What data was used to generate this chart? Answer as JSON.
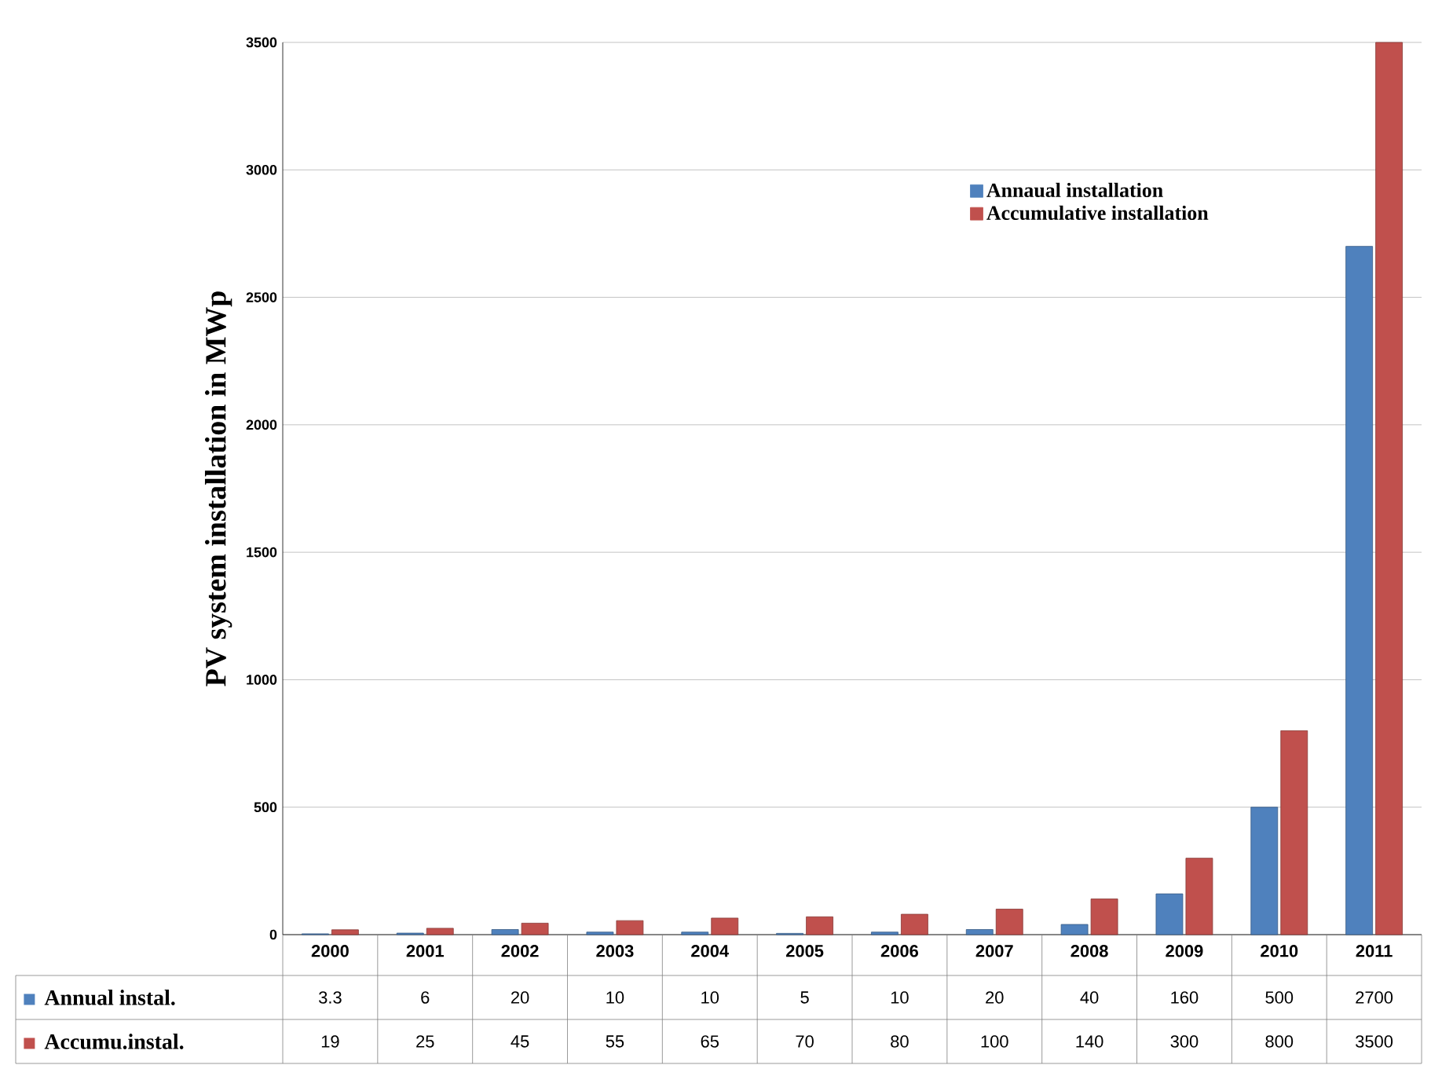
{
  "chart_data": {
    "type": "bar",
    "ylabel": "PV system installation in MWp",
    "categories": [
      "2000",
      "2001",
      "2002",
      "2003",
      "2004",
      "2005",
      "2006",
      "2007",
      "2008",
      "2009",
      "2010",
      "2011"
    ],
    "series": [
      {
        "name": "Annaual installation",
        "color": "#4f81bd",
        "values": [
          3.3,
          6,
          20,
          10,
          10,
          5,
          10,
          20,
          40,
          160,
          500,
          2700
        ]
      },
      {
        "name": "Accumulative installation",
        "color": "#c0504d",
        "values": [
          19,
          25,
          45,
          55,
          65,
          70,
          80,
          100,
          140,
          300,
          800,
          3500
        ]
      }
    ],
    "ylim": [
      0,
      3500
    ],
    "yticks": [
      0,
      500,
      1000,
      1500,
      2000,
      2500,
      3000,
      3500
    ],
    "grid": "y",
    "legend": "top right",
    "data_labels": true,
    "annotations": [
      "Annual instal.",
      "Accumu.instal."
    ]
  }
}
